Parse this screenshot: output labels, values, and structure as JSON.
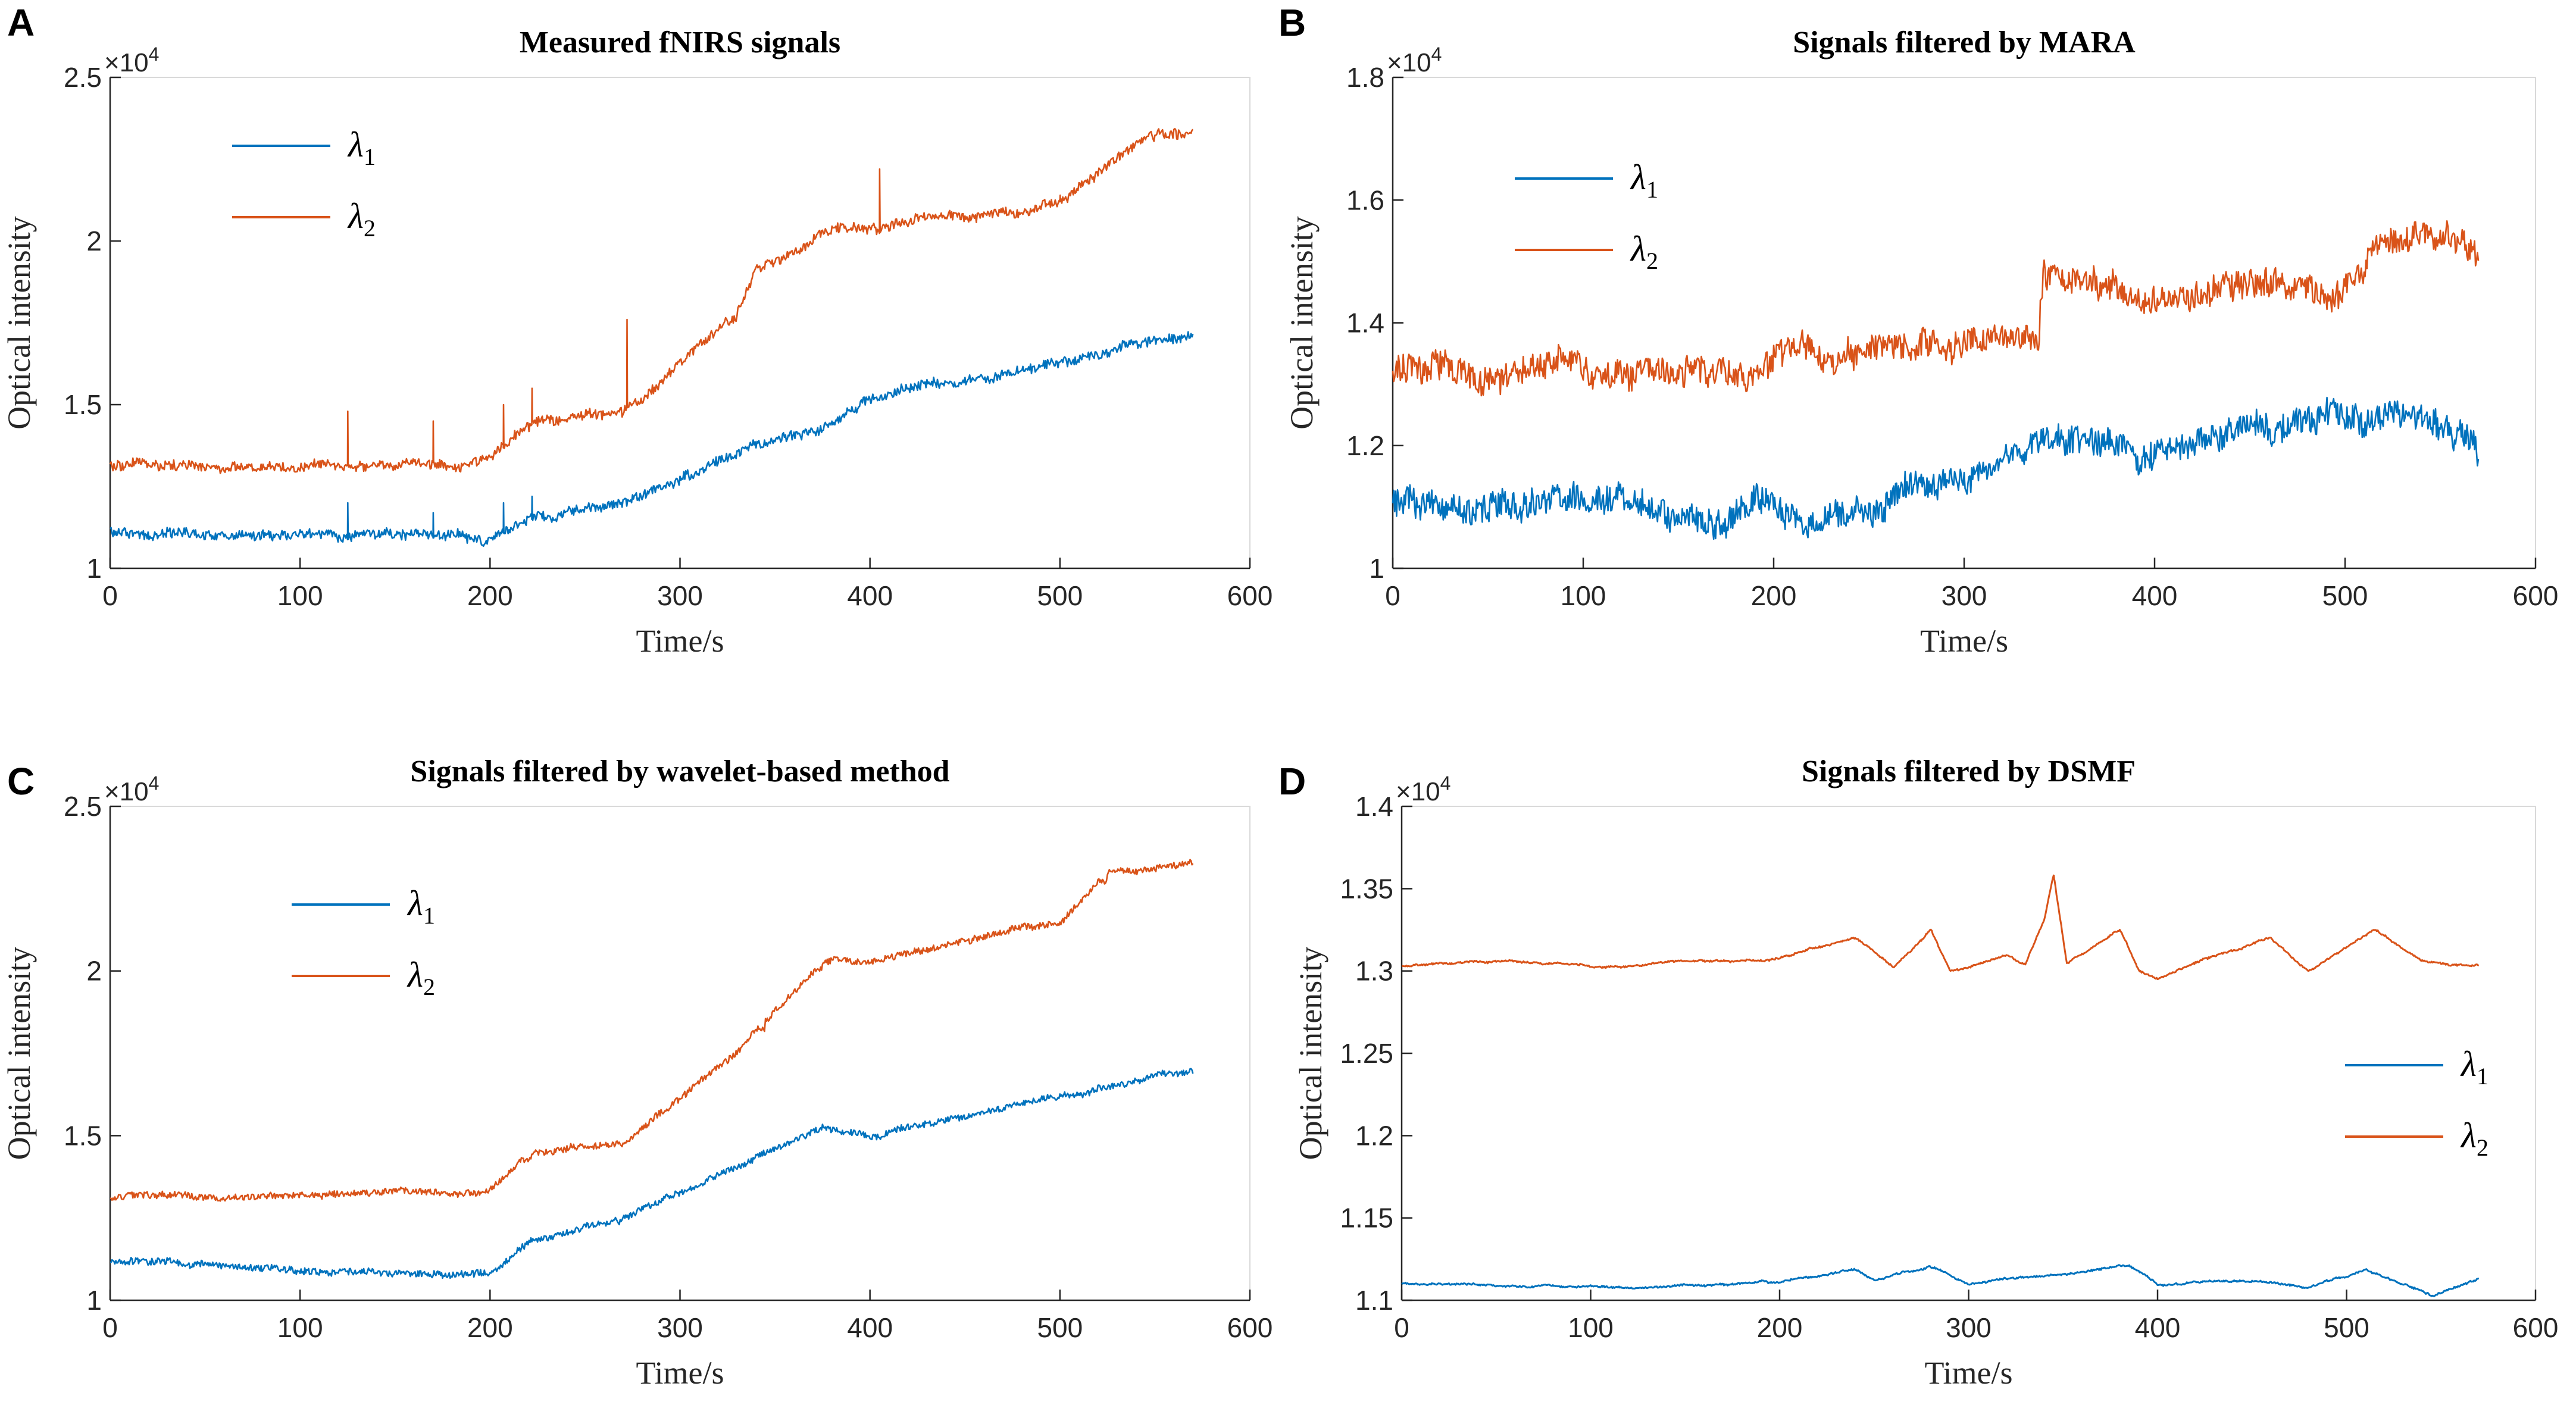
{
  "chart_data": [
    {
      "panel": "A",
      "type": "line",
      "title": "Measured fNIRS signals",
      "xlabel": "Time/s",
      "ylabel": "Optical intensity",
      "y_exponent": "×10^4",
      "xlim": [
        0,
        600
      ],
      "ylim": [
        1,
        2.5
      ],
      "xticks": [
        0,
        100,
        200,
        300,
        400,
        500,
        600
      ],
      "yticks": [
        1,
        1.5,
        2,
        2.5
      ],
      "ytick_labels": [
        "1",
        "1.5",
        "2",
        "2.5"
      ],
      "legend": "top-left",
      "noise": 0.018,
      "series": [
        {
          "name": "λ1",
          "color": "#0072BD",
          "x": [
            0,
            100,
            200,
            222,
            270,
            330,
            380,
            400,
            500,
            550,
            570
          ],
          "y": [
            1.11,
            1.1,
            1.09,
            1.15,
            1.2,
            1.35,
            1.45,
            1.52,
            1.62,
            1.7,
            1.71
          ],
          "steps": [
            270,
            330,
            380,
            500
          ],
          "spikes": [
            [
              125,
              1.2
            ],
            [
              170,
              1.17
            ],
            [
              207,
              1.2
            ],
            [
              222,
              1.22
            ]
          ]
        },
        {
          "name": "λ2",
          "color": "#D95319",
          "x": [
            0,
            100,
            200,
            222,
            270,
            330,
            340,
            380,
            400,
            500,
            550,
            570
          ],
          "y": [
            1.31,
            1.31,
            1.33,
            1.45,
            1.48,
            1.78,
            1.9,
            2.02,
            2.04,
            2.12,
            2.33,
            2.34
          ],
          "steps": [
            222,
            270,
            330,
            345,
            380,
            500,
            550
          ],
          "spikes": [
            [
              125,
              1.48
            ],
            [
              170,
              1.45
            ],
            [
              207,
              1.5
            ],
            [
              222,
              1.55
            ],
            [
              272,
              1.76
            ],
            [
              405,
              2.22
            ],
            [
              500,
              2.14
            ]
          ]
        }
      ]
    },
    {
      "panel": "B",
      "type": "line",
      "title": "Signals filtered by MARA",
      "xlabel": "Time/s",
      "ylabel": "Optical intensity",
      "y_exponent": "×10^4",
      "xlim": [
        0,
        600
      ],
      "ylim": [
        1,
        1.8
      ],
      "xticks": [
        0,
        100,
        200,
        300,
        400,
        500,
        600
      ],
      "yticks": [
        1,
        1.2,
        1.4,
        1.6,
        1.8
      ],
      "ytick_labels": [
        "1",
        "1.2",
        "1.4",
        "1.6",
        "1.8"
      ],
      "legend": "top-left",
      "noise": 0.028,
      "series": [
        {
          "name": "λ1",
          "color": "#0072BD",
          "x": [
            0,
            100,
            150,
            200,
            215,
            300,
            340,
            400,
            480,
            520,
            570
          ],
          "y": [
            1.11,
            1.1,
            1.09,
            1.11,
            1.08,
            1.13,
            1.2,
            1.2,
            1.23,
            1.25,
            1.22
          ],
          "steps": [
            340
          ],
          "spikes": []
        },
        {
          "name": "λ2",
          "color": "#D95319",
          "x": [
            0,
            100,
            200,
            230,
            300,
            338,
            342,
            400,
            500,
            520,
            560,
            570
          ],
          "y": [
            1.32,
            1.32,
            1.33,
            1.36,
            1.37,
            1.37,
            1.48,
            1.45,
            1.47,
            1.55,
            1.54,
            1.5
          ],
          "steps": [
            340
          ],
          "spikes": []
        }
      ]
    },
    {
      "panel": "C",
      "type": "line",
      "title": "Signals filtered by wavelet-based method",
      "xlabel": "Time/s",
      "ylabel": "Optical intensity",
      "y_exponent": "×10^4",
      "xlim": [
        0,
        600
      ],
      "ylim": [
        1,
        2.5
      ],
      "xticks": [
        0,
        100,
        200,
        300,
        400,
        500,
        600
      ],
      "yticks": [
        1,
        1.5,
        2,
        2.5
      ],
      "ytick_labels": [
        "1",
        "1.5",
        "2",
        "2.5"
      ],
      "legend": "top-left",
      "noise": 0.012,
      "series": [
        {
          "name": "λ1",
          "color": "#0072BD",
          "x": [
            0,
            100,
            200,
            222,
            270,
            330,
            375,
            400,
            500,
            550,
            570
          ],
          "y": [
            1.12,
            1.09,
            1.08,
            1.18,
            1.25,
            1.4,
            1.52,
            1.5,
            1.62,
            1.68,
            1.69
          ],
          "steps": [
            270,
            375,
            500
          ],
          "spikes": []
        },
        {
          "name": "λ2",
          "color": "#D95319",
          "x": [
            0,
            100,
            200,
            222,
            270,
            330,
            345,
            375,
            400,
            500,
            525,
            570
          ],
          "y": [
            1.31,
            1.32,
            1.33,
            1.45,
            1.48,
            1.75,
            1.85,
            2.03,
            2.03,
            2.15,
            2.3,
            2.33
          ],
          "steps": [
            222,
            270,
            345,
            375,
            500,
            525
          ],
          "spikes": []
        }
      ]
    },
    {
      "panel": "D",
      "type": "line",
      "title": "Signals filtered by DSMF",
      "xlabel": "Time/s",
      "ylabel": "Optical intensity",
      "y_exponent": "×10^4",
      "xlim": [
        0,
        600
      ],
      "ylim": [
        1.1,
        1.4
      ],
      "xticks": [
        0,
        100,
        200,
        300,
        400,
        500,
        600
      ],
      "yticks": [
        1.1,
        1.15,
        1.2,
        1.25,
        1.3,
        1.35,
        1.4
      ],
      "ytick_labels": [
        "1.1",
        "1.15",
        "1.2",
        "1.25",
        "1.3",
        "1.35",
        "1.4"
      ],
      "legend": "bottom-right",
      "noise": 0.0015,
      "series": [
        {
          "name": "λ1",
          "color": "#0072BD",
          "x": [
            0,
            100,
            200,
            240,
            250,
            280,
            300,
            340,
            385,
            400,
            450,
            480,
            510,
            545,
            570
          ],
          "y": [
            1.11,
            1.108,
            1.11,
            1.119,
            1.112,
            1.12,
            1.11,
            1.115,
            1.121,
            1.11,
            1.112,
            1.108,
            1.118,
            1.104,
            1.114
          ],
          "steps": [],
          "spikes": []
        },
        {
          "name": "λ2",
          "color": "#D95319",
          "x": [
            0,
            30,
            100,
            200,
            240,
            260,
            280,
            290,
            300,
            320,
            330,
            340,
            345,
            352,
            380,
            390,
            400,
            420,
            460,
            470,
            480,
            515,
            540,
            570
          ],
          "y": [
            1.303,
            1.306,
            1.302,
            1.308,
            1.32,
            1.302,
            1.325,
            1.3,
            1.302,
            1.31,
            1.303,
            1.33,
            1.358,
            1.305,
            1.325,
            1.3,
            1.295,
            1.305,
            1.32,
            1.31,
            1.3,
            1.325,
            1.305,
            1.302
          ],
          "steps": [],
          "spikes": [
            [
              345,
              1.358
            ]
          ]
        }
      ]
    }
  ]
}
